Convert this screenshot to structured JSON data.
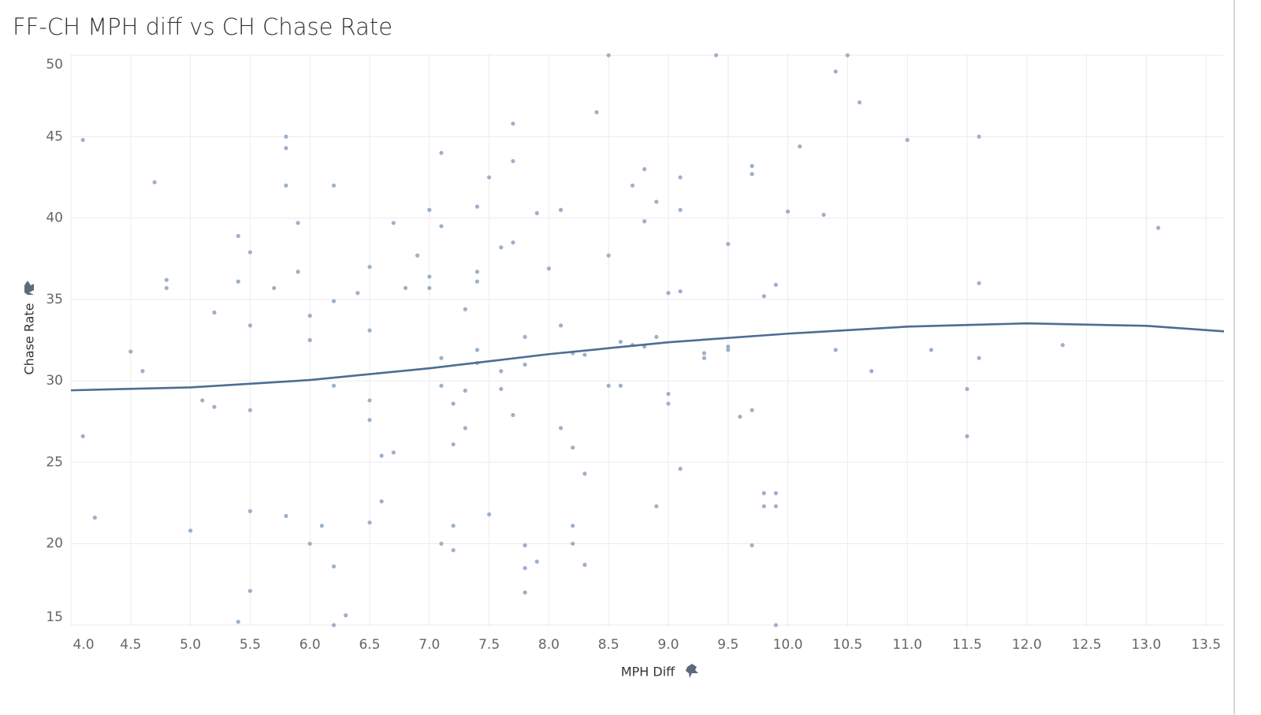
{
  "chart_data": {
    "type": "scatter",
    "title": "FF-CH MPH diff vs CH Chase Rate",
    "x_label": "MPH Diff",
    "y_label": "Chase Rate",
    "color": "#9bb1c9",
    "grid": true,
    "xlim": [
      4.0,
      13.65
    ],
    "ylim": [
      14.9,
      50.1
    ],
    "xticks": [
      {
        "value": 4,
        "label": "4.0"
      },
      4.5,
      {
        "value": 5,
        "label": "5.0"
      },
      5.5,
      {
        "value": 6,
        "label": "6.0"
      },
      6.5,
      {
        "value": 7,
        "label": "7.0"
      },
      7.5,
      {
        "value": 8,
        "label": "8.0"
      },
      8.5,
      {
        "value": 9,
        "label": "9.0"
      },
      9.5,
      {
        "value": 10,
        "label": "10.0"
      },
      10.5,
      {
        "value": 11,
        "label": "11.0"
      },
      11.5,
      {
        "value": 12,
        "label": "12.0"
      },
      12.5,
      {
        "value": 13,
        "label": "13.0"
      },
      13.5
    ],
    "yticks": [
      15,
      20,
      25,
      30,
      35,
      40,
      45,
      50
    ],
    "x": [
      4.1,
      4.1,
      4.2,
      4.5,
      4.6,
      4.7,
      4.8,
      4.8,
      5.0,
      5.1,
      5.2,
      5.2,
      5.4,
      5.4,
      5.4,
      5.5,
      5.5,
      5.5,
      5.5,
      5.5,
      5.7,
      5.8,
      5.8,
      5.8,
      5.8,
      5.9,
      5.9,
      6.0,
      6.0,
      6.0,
      6.1,
      6.2,
      6.2,
      6.2,
      6.2,
      6.2,
      6.3,
      6.4,
      6.5,
      6.5,
      6.5,
      6.5,
      6.5,
      6.6,
      6.6,
      6.7,
      6.7,
      6.8,
      6.9,
      7.0,
      7.0,
      7.0,
      7.1,
      7.1,
      7.1,
      7.1,
      7.1,
      7.2,
      7.2,
      7.2,
      7.2,
      7.3,
      7.3,
      7.3,
      7.4,
      7.4,
      7.4,
      7.4,
      7.4,
      7.5,
      7.5,
      7.6,
      7.6,
      7.6,
      7.7,
      7.7,
      7.7,
      7.7,
      7.8,
      7.8,
      7.8,
      7.8,
      7.8,
      7.9,
      7.9,
      8.0,
      8.1,
      8.1,
      8.1,
      8.2,
      8.2,
      8.2,
      8.2,
      8.3,
      8.3,
      8.3,
      8.4,
      8.5,
      8.5,
      8.5,
      8.6,
      8.6,
      8.7,
      8.7,
      8.8,
      8.8,
      8.8,
      8.9,
      8.9,
      8.9,
      9.0,
      9.0,
      9.0,
      9.1,
      9.1,
      9.1,
      9.1,
      9.3,
      9.3,
      9.4,
      9.5,
      9.5,
      9.5,
      9.6,
      9.7,
      9.7,
      9.7,
      9.7,
      9.8,
      9.8,
      9.8,
      9.9,
      9.9,
      9.9,
      9.9,
      10.0,
      10.1,
      10.3,
      10.4,
      10.4,
      10.5,
      10.6,
      10.7,
      11.0,
      11.2,
      11.5,
      11.5,
      11.6,
      11.6,
      11.6,
      12.3,
      13.1
    ],
    "y": [
      44.8,
      26.6,
      21.6,
      31.8,
      30.6,
      42.2,
      36.2,
      35.7,
      20.8,
      28.8,
      34.2,
      28.4,
      38.9,
      36.1,
      15.2,
      37.9,
      33.4,
      28.2,
      22.0,
      17.1,
      35.7,
      45.0,
      44.3,
      42.0,
      21.7,
      39.7,
      36.7,
      34.0,
      32.5,
      20.0,
      21.1,
      42.0,
      34.9,
      29.7,
      18.6,
      15.0,
      15.6,
      35.4,
      37.0,
      33.1,
      28.8,
      27.6,
      21.3,
      25.4,
      22.6,
      39.7,
      25.6,
      35.7,
      37.7,
      40.5,
      36.4,
      35.7,
      44.0,
      39.5,
      31.4,
      29.7,
      20.0,
      28.6,
      26.1,
      21.1,
      19.6,
      34.4,
      29.4,
      27.1,
      40.7,
      36.7,
      36.1,
      31.9,
      31.1,
      42.5,
      21.8,
      38.2,
      30.6,
      29.5,
      45.8,
      43.5,
      38.5,
      27.9,
      32.7,
      31.0,
      19.9,
      18.5,
      17.0,
      40.3,
      18.9,
      36.9,
      40.5,
      33.4,
      27.1,
      31.7,
      25.9,
      21.1,
      20.0,
      31.6,
      24.3,
      18.7,
      46.5,
      50.0,
      37.7,
      29.7,
      32.4,
      29.7,
      42.0,
      32.2,
      43.0,
      39.8,
      32.1,
      41.0,
      32.7,
      22.3,
      35.4,
      29.2,
      28.6,
      42.5,
      40.5,
      35.5,
      24.6,
      31.7,
      31.4,
      50.0,
      38.4,
      32.1,
      31.9,
      27.8,
      43.2,
      42.7,
      28.2,
      19.9,
      35.2,
      23.1,
      22.3,
      35.9,
      23.1,
      22.3,
      15.0,
      40.4,
      44.4,
      40.2,
      49.0,
      31.9,
      50.0,
      47.1,
      30.6,
      44.8,
      31.9,
      29.5,
      26.6,
      45.0,
      36.0,
      31.4,
      32.2,
      39.4
    ],
    "trend": {
      "color": "#4e6d92",
      "x": [
        4.0,
        5.0,
        6.0,
        7.0,
        8.0,
        9.0,
        10.0,
        11.0,
        12.0,
        13.0,
        13.65
      ],
      "y": [
        29.42,
        29.6,
        30.05,
        30.77,
        31.64,
        32.37,
        32.9,
        33.33,
        33.53,
        33.38,
        33.04
      ]
    }
  }
}
